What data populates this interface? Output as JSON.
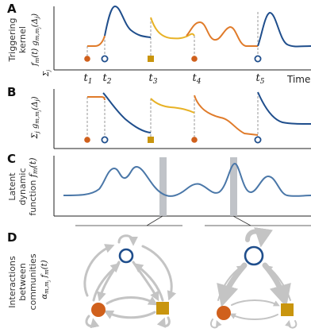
{
  "panels": {
    "A": {
      "letter": "A",
      "ylabel_line1": "Triggering",
      "ylabel_line2": "kernel",
      "ylabel_math": "f_m(t) g_{m,m_j}(Δ_j)",
      "events": [
        {
          "label": "t",
          "sub": "1",
          "community": "orange",
          "marker": "circle-filled"
        },
        {
          "label": "t",
          "sub": "2",
          "community": "blue",
          "marker": "circle-open"
        },
        {
          "label": "t",
          "sub": "3",
          "community": "yellow",
          "marker": "square"
        },
        {
          "label": "t",
          "sub": "4",
          "community": "orange",
          "marker": "circle-filled"
        },
        {
          "label": "t",
          "sub": "5",
          "community": "blue",
          "marker": "circle-open"
        }
      ],
      "x_axis_label": "Time"
    },
    "B": {
      "letter": "B",
      "ylabel_math": "Σ_j g_{m,m_j}(Δ_j)"
    },
    "C": {
      "letter": "C",
      "ylabel_line1": "Latent",
      "ylabel_line2": "dynamic",
      "ylabel_line3": "function f_m(t)"
    },
    "D": {
      "letter": "D",
      "ylabel_line1": "Interactions",
      "ylabel_line2": "between",
      "ylabel_line3": "communities",
      "ylabel_math1": "α_{m,m_j} f_m(t)"
    }
  },
  "colors": {
    "blue": "#1f4e8c",
    "orange": "#e07b2a",
    "yellow": "#d6a21a",
    "orange_marker": "#d0601c",
    "yellow_marker": "#c9950e",
    "latent": "#4a77a8",
    "gray_band": "#b9bcc2",
    "arrow_gray": "#c4c4c4"
  }
}
